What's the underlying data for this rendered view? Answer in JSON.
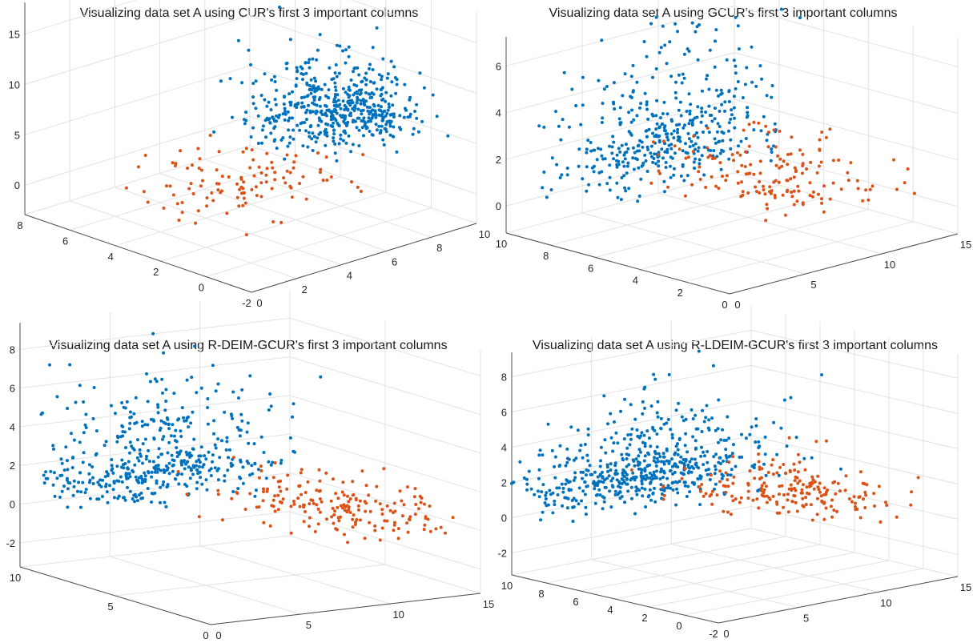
{
  "figure": {
    "colors": {
      "cluster_1": "#0072BD",
      "cluster_2": "#D95319",
      "grid": "#e2e2e2",
      "axis": "#4d4d4d"
    }
  },
  "chart_data": [
    {
      "type": "scatter",
      "title": "Visualizing data set A using CUR's first 3 important columns",
      "xlim": [
        -2,
        8
      ],
      "ylim": [
        0,
        10
      ],
      "zlim": [
        -2,
        15
      ],
      "x_ticks": [
        "-2",
        "0",
        "2",
        "4",
        "6",
        "8"
      ],
      "y_ticks": [
        "0",
        "2",
        "4",
        "6",
        "8",
        "10"
      ],
      "z_ticks": [
        "0",
        "5",
        "10",
        "15"
      ],
      "series": [
        {
          "color": "#0072BD",
          "centroid": [
            2.5,
            8.5,
            5
          ],
          "spread": [
            1.2,
            1.5,
            2.5
          ],
          "count": 520
        },
        {
          "color": "#D95319",
          "centroid": [
            1.5,
            3.5,
            2.5
          ],
          "spread": [
            1.6,
            2.0,
            1.2
          ],
          "count": 110
        }
      ],
      "grid": true
    },
    {
      "type": "scatter",
      "title": "Visualizing data set A using GCUR's first 3 important columns",
      "xlim": [
        0,
        10
      ],
      "ylim": [
        0,
        15
      ],
      "zlim": [
        0,
        7
      ],
      "x_ticks": [
        "0",
        "2",
        "4",
        "6",
        "8",
        "10"
      ],
      "y_ticks": [
        "0",
        "5",
        "10",
        "15"
      ],
      "z_ticks": [
        "0",
        "2",
        "4",
        "6"
      ],
      "series": [
        {
          "color": "#0072BD",
          "centroid": [
            8.5,
            8,
            2.5
          ],
          "spread": [
            0.8,
            3.5,
            2.0
          ],
          "count": 420
        },
        {
          "color": "#D95319",
          "centroid": [
            5.5,
            11,
            1.2
          ],
          "spread": [
            2.5,
            2.0,
            0.8
          ],
          "count": 160
        }
      ],
      "grid": true
    },
    {
      "type": "scatter",
      "title": "Visualizing data set A using R-DEIM-GCUR's first 3 important columns",
      "xlim": [
        0,
        12
      ],
      "ylim": [
        0,
        15
      ],
      "zlim": [
        -2,
        8
      ],
      "x_ticks": [
        "0",
        "5",
        "10"
      ],
      "y_ticks": [
        "0",
        "5",
        "10",
        "15"
      ],
      "z_ticks": [
        "-2",
        "0",
        "2",
        "4",
        "6",
        "8"
      ],
      "series": [
        {
          "color": "#0072BD",
          "centroid": [
            9,
            5,
            2.5
          ],
          "spread": [
            0.9,
            3.0,
            2.0
          ],
          "count": 470
        },
        {
          "color": "#D95319",
          "centroid": [
            5,
            11,
            0.8
          ],
          "spread": [
            2.5,
            2.5,
            0.7
          ],
          "count": 190
        }
      ],
      "grid": true
    },
    {
      "type": "scatter",
      "title": "Visualizing data set A using R-LDEIM-GCUR's first 3 important columns",
      "xlim": [
        -2,
        10
      ],
      "ylim": [
        0,
        15
      ],
      "zlim": [
        -2,
        8
      ],
      "x_ticks": [
        "-2",
        "0",
        "2",
        "4",
        "6",
        "8",
        "10"
      ],
      "y_ticks": [
        "0",
        "5",
        "10",
        "15"
      ],
      "z_ticks": [
        "-2",
        "0",
        "2",
        "4",
        "6",
        "8"
      ],
      "series": [
        {
          "color": "#0072BD",
          "centroid": [
            8,
            6,
            2.2
          ],
          "spread": [
            1.0,
            3.5,
            1.6
          ],
          "count": 560
        },
        {
          "color": "#D95319",
          "centroid": [
            4.5,
            11.5,
            1.0
          ],
          "spread": [
            2.3,
            2.0,
            0.8
          ],
          "count": 200
        }
      ],
      "grid": true
    }
  ]
}
